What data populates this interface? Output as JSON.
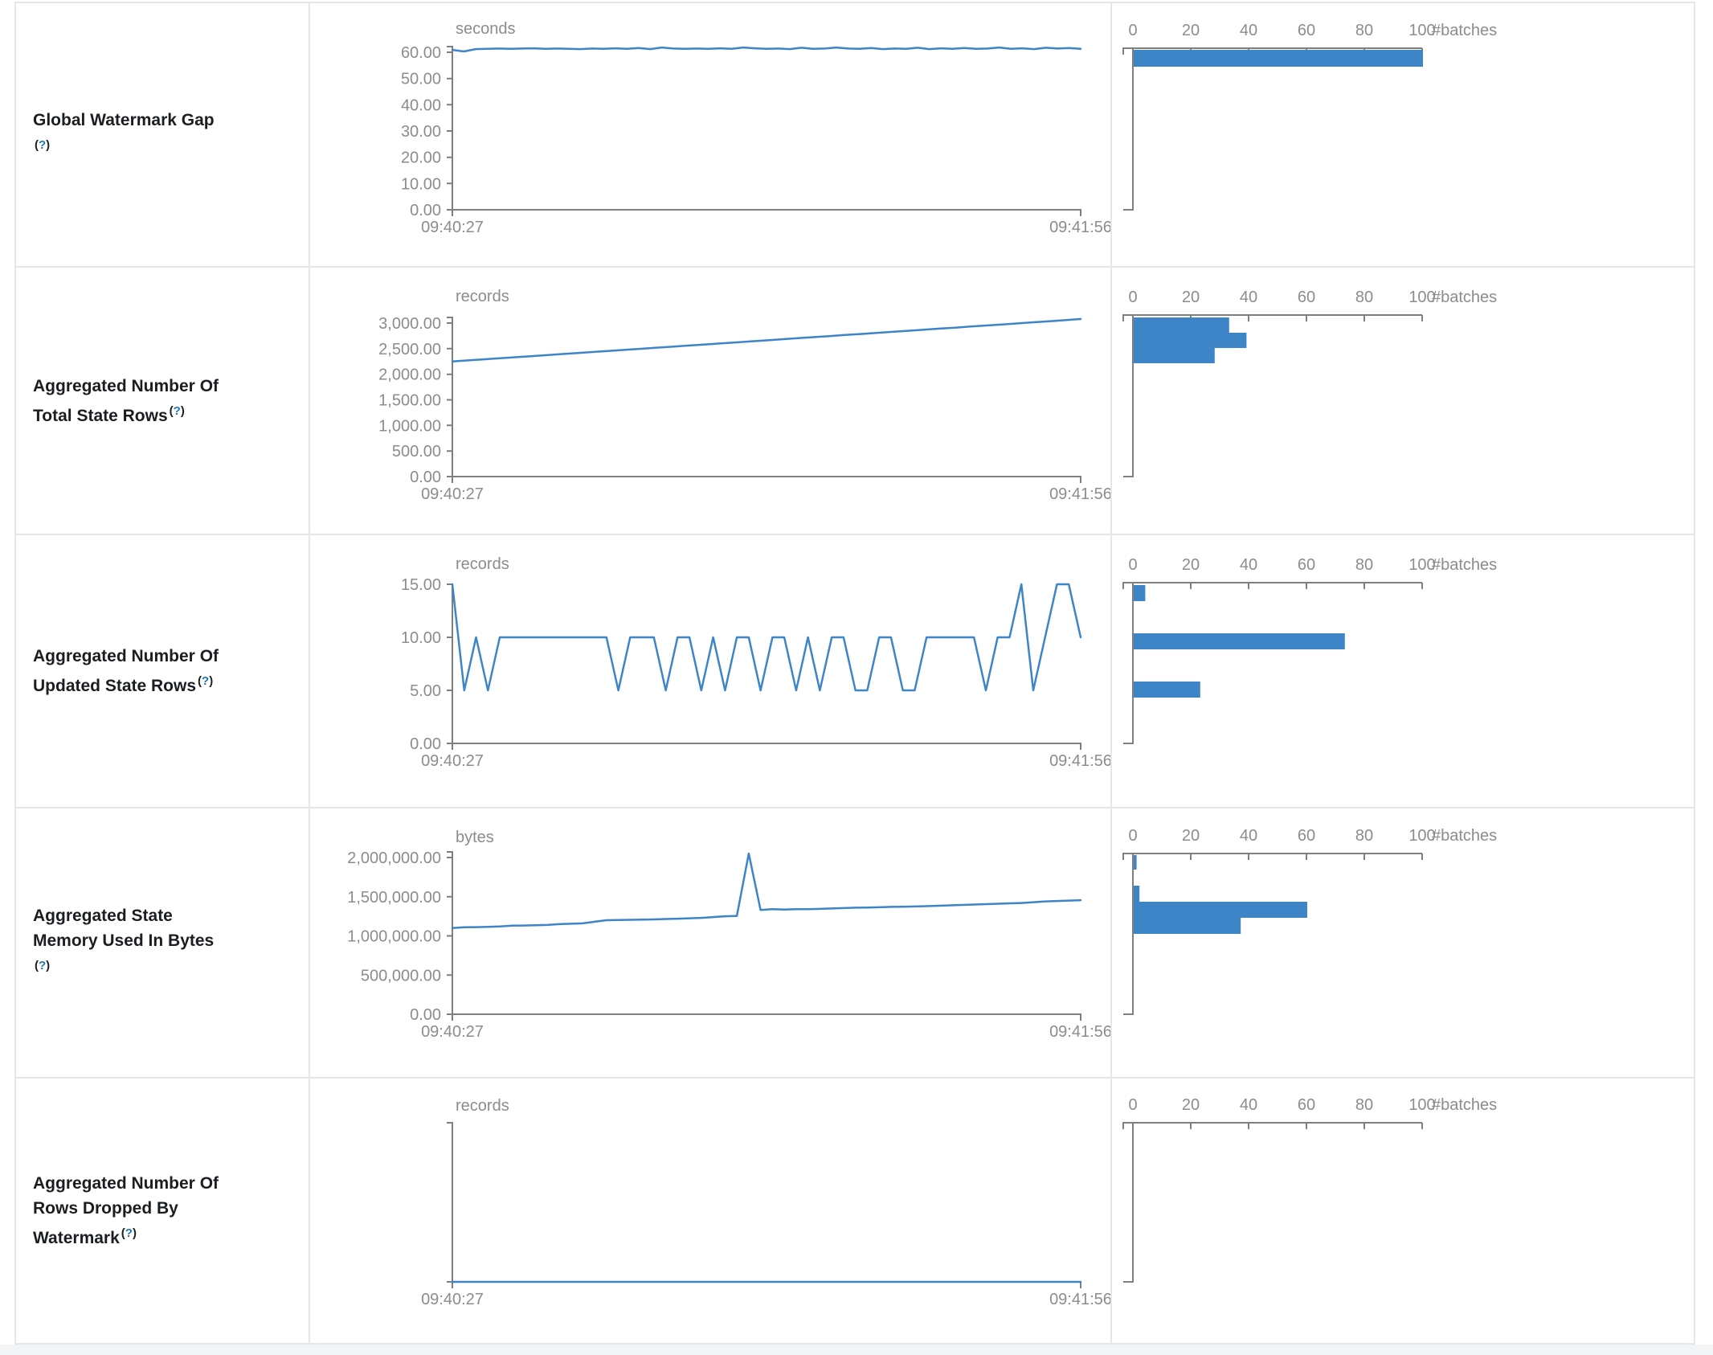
{
  "help": {
    "open": "(",
    "q": "?",
    "close": ")"
  },
  "chart_data": [
    {
      "type": "line+histogram",
      "title": "Global Watermark Gap\n",
      "unit": "seconds",
      "x_start": "09:40:27",
      "x_end": "09:41:56",
      "y_tick_labels": [
        "60.00",
        "50.00",
        "40.00",
        "30.00",
        "20.00",
        "10.00",
        "0.00"
      ],
      "y_max": 60,
      "values": [
        60.9,
        60.3,
        61.2,
        61.3,
        61.4,
        61.3,
        61.4,
        61.5,
        61.3,
        61.4,
        61.3,
        61.2,
        61.4,
        61.3,
        61.5,
        61.3,
        61.6,
        61.2,
        61.8,
        61.4,
        61.3,
        61.4,
        61.3,
        61.5,
        61.3,
        61.8,
        61.5,
        61.3,
        61.4,
        61.2,
        61.7,
        61.3,
        61.4,
        61.8,
        61.4,
        61.3,
        61.6,
        61.2,
        61.4,
        61.3,
        61.7,
        61.2,
        61.5,
        61.3,
        61.6,
        61.3,
        61.4,
        61.8,
        61.3,
        61.5,
        61.2,
        61.7,
        61.4,
        61.6,
        61.3
      ],
      "histogram": {
        "axis_label": "#batches",
        "axis_ticks": [
          0,
          20,
          40,
          60,
          80,
          100
        ],
        "bin_batches": [
          100
        ],
        "bin_values": [
          61
        ]
      }
    },
    {
      "type": "line+histogram",
      "title": "Aggregated Number Of\nTotal State Rows",
      "unit": "records",
      "x_start": "09:40:27",
      "x_end": "09:41:56",
      "y_tick_labels": [
        "3,000.00",
        "2,500.00",
        "2,000.00",
        "1,500.00",
        "1,000.00",
        "500.00",
        "0.00"
      ],
      "y_max": 3000,
      "values": [
        2250,
        2271,
        2291,
        2312,
        2333,
        2353,
        2374,
        2395,
        2415,
        2436,
        2457,
        2477,
        2498,
        2519,
        2539,
        2560,
        2581,
        2601,
        2622,
        2643,
        2663,
        2684,
        2705,
        2725,
        2746,
        2767,
        2787,
        2808,
        2829,
        2849,
        2870,
        2891,
        2911,
        2932,
        2953,
        2973,
        2994,
        3015,
        3035,
        3056,
        3080
      ],
      "histogram": {
        "axis_label": "#batches",
        "axis_ticks": [
          0,
          20,
          40,
          60,
          80,
          100
        ],
        "bin_batches": [
          33,
          39,
          28
        ],
        "bin_values": [
          3100,
          2800,
          2500
        ]
      }
    },
    {
      "type": "line+histogram",
      "title": "Aggregated Number Of\nUpdated State Rows",
      "unit": "records",
      "x_start": "09:40:27",
      "x_end": "09:41:56",
      "y_tick_labels": [
        "15.00",
        "10.00",
        "5.00",
        "0.00"
      ],
      "y_max": 15,
      "values": [
        15,
        5,
        10,
        5,
        10,
        10,
        10,
        10,
        10,
        10,
        10,
        10,
        10,
        10,
        5,
        10,
        10,
        10,
        5,
        10,
        10,
        5,
        10,
        5,
        10,
        10,
        5,
        10,
        10,
        5,
        10,
        5,
        10,
        10,
        5,
        5,
        10,
        10,
        5,
        5,
        10,
        10,
        10,
        10,
        10,
        5,
        10,
        10,
        15,
        5,
        10,
        15,
        15,
        10
      ],
      "histogram": {
        "axis_label": "#batches",
        "axis_ticks": [
          0,
          20,
          40,
          60,
          80,
          100
        ],
        "bin_batches": [
          4,
          73,
          23
        ],
        "bin_values": [
          15,
          10,
          5
        ]
      }
    },
    {
      "type": "line+histogram",
      "title": "Aggregated State\nMemory Used In Bytes\n",
      "unit": "bytes",
      "x_start": "09:40:27",
      "x_end": "09:41:56",
      "y_tick_labels": [
        "2,000,000.00",
        "1,500,000.00",
        "1,000,000.00",
        "500,000.00",
        "0.00"
      ],
      "y_max": 2000000,
      "values": [
        1100000,
        1110000,
        1112000,
        1115000,
        1120000,
        1130000,
        1132000,
        1135000,
        1140000,
        1150000,
        1155000,
        1160000,
        1180000,
        1200000,
        1202000,
        1205000,
        1208000,
        1210000,
        1215000,
        1220000,
        1225000,
        1230000,
        1240000,
        1250000,
        1255000,
        2050000,
        1330000,
        1340000,
        1335000,
        1340000,
        1342000,
        1345000,
        1350000,
        1355000,
        1360000,
        1362000,
        1365000,
        1370000,
        1372000,
        1375000,
        1380000,
        1385000,
        1390000,
        1395000,
        1400000,
        1405000,
        1410000,
        1415000,
        1420000,
        1430000,
        1440000,
        1445000,
        1450000,
        1455000
      ],
      "histogram": {
        "axis_label": "#batches",
        "axis_ticks": [
          0,
          20,
          40,
          60,
          80,
          100
        ],
        "bin_batches": [
          1,
          2,
          60,
          37
        ],
        "bin_values": [
          2000000,
          1650000,
          1450000,
          1250000
        ]
      }
    },
    {
      "type": "line+histogram",
      "title": "Aggregated Number Of\nRows Dropped By\nWatermark",
      "unit": "records",
      "x_start": "09:40:27",
      "x_end": "09:41:56",
      "y_tick_labels": [],
      "y_max": 1,
      "values": [
        0,
        0,
        0,
        0,
        0,
        0,
        0,
        0,
        0,
        0
      ],
      "histogram": {
        "axis_label": "#batches",
        "axis_ticks": [
          0,
          20,
          40,
          60,
          80,
          100
        ],
        "bin_batches": [],
        "bin_values": []
      }
    }
  ]
}
